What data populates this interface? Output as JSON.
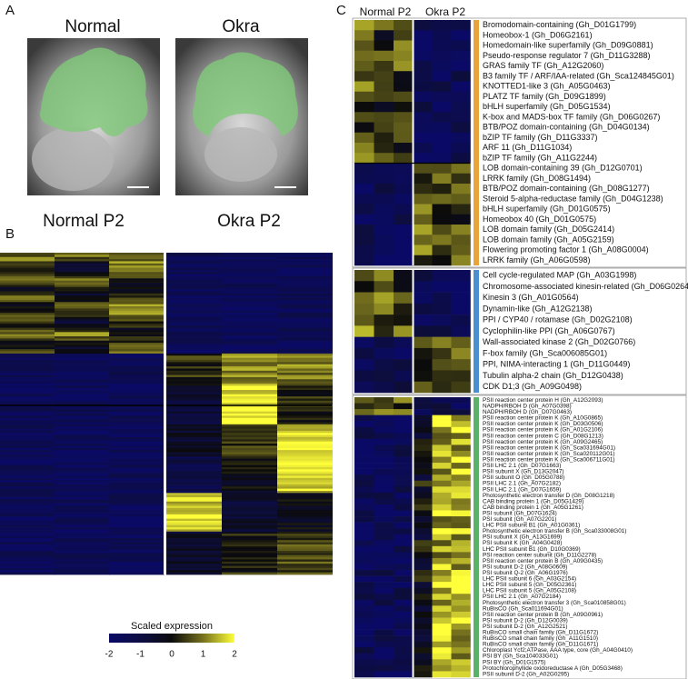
{
  "panels": {
    "A": {
      "label": "A",
      "images": [
        {
          "title": "Normal"
        },
        {
          "title": "Okra"
        }
      ]
    },
    "B": {
      "label": "B",
      "columns": [
        "Normal P2",
        "Okra P2"
      ],
      "colorbar": {
        "title": "Scaled expression",
        "ticks": [
          -2,
          -1,
          0,
          1,
          2
        ]
      }
    },
    "C": {
      "label": "C",
      "columns": [
        "Normal P2",
        "Okra P2"
      ],
      "groups": [
        {
          "color": "#e8a33a",
          "genes": [
            "Bromodomain-containing (Gh_D01G1799)",
            "Homeobox-1 (Gh_D06G2161)",
            "Homedomain-like superfamily (Gh_D09G0881)",
            "Pseudo-response regulator 7 (Gh_D11G3288)",
            "GRAS family TF (Gh_A12G2060)",
            "B3 family TF / ARF/IAA-related (Gh_Sca124845G01)",
            "KNOTTED1-like 3 (Gh_A05G0463)",
            "PLATZ TF family (Gh_D09G1899)",
            "bHLH superfamily (Gh_D05G1534)",
            "K-box and MADS-box TF family (Gh_D06G0267)",
            "BTB/POZ domain-containing (Gh_D04G0134)",
            "bZIP TF family (Gh_D11G3337)",
            "ARF 11 (Gh_D11G1034)",
            "bZIP TF family (Gh_A11G2244)",
            "LOB domain-containing 39 (Gh_D12G0701)",
            "LRRK family (Gh_D08G1494)",
            "BTB/POZ domain-containing (Gh_D08G1277)",
            "Steroid 5-alpha-reductase family (Gh_D04G1238)",
            "bHLH superfamily (Gh_D01G0575)",
            "Homeobox 40 (Gh_D01G0575)",
            "LOB domain family (Gh_D05G2414)",
            "LOB domain family (Gh_A05G2159)",
            "Flowering promoting factor 1 (Gh_A08G0004)",
            "LRRK family (Gh_A06G0598)"
          ]
        },
        {
          "color": "#4a90d0",
          "genes": [
            "Cell cycle-regulated MAP (Gh_A03G1998)",
            "Chromosome-associated kinesin-related (Gh_D06G0264)",
            "Kinesin 3 (Gh_A01G0564)",
            "Dynamin-like (Gh_A12G2138)",
            "PPI / CYP40 / rotamase (Gh_D02G2108)",
            "Cyclophilin-like PPI (Gh_A06G0767)",
            "Wall-associated kinase 2 (Gh_D02G0766)",
            "F-box family (Gh_Sca006085G01)",
            "PPI, NIMA-interacting 1 (Gh_D11G0449)",
            "Tubulin alpha-2 chain (Gh_D12G0438)",
            "CDK D1;3 (Gh_A09G0498)"
          ]
        },
        {
          "color": "#5bb06a",
          "genes": [
            "PSII reaction center protein H (Gh_A12G2093)",
            "NADPH/RBOH D (Gh_A07G0398)",
            "NADPH/RBOH D (Gh_D07G0463)",
            "PSII reaction center protein K (Gh_A10G0865)",
            "PSII reaction center protein K (Gh_D03G0506)",
            "PSII reaction center protein K (Gh_A01G2106)",
            "PSII reaction center protein C (Gh_D08G1213)",
            "PSII reaction center protein K (Gh_A09G2465)",
            "PSII reaction center protein K (Gh_Sca031694G01)",
            "PSII reaction center protein K (Gh_Sca020112G01)",
            "PSII reaction center protein K (Gh_Sca006711G01)",
            "PSII LHC 2.1 (Gh_D07G1663)",
            "PSII subunit X (Gh_D13G2047)",
            "PSII subunit O (Gh_D05G0788)",
            "PSII LHC 2.1 (Gh_A07G2182)",
            "PSII LHC 2.1 (Gh_D07G1659)",
            "Photosynthetic electron transfer D (Gh_D08G1218)",
            "CAB binding protein 1 (Gh_D05G1429)",
            "CAB binding protein 1 (Gh_A05G1261)",
            "PSI subunit (Gh_D07G1624)",
            "PSI subunit (Gh_A07G2201)",
            "LHC PSII subunit B1 (Gh_A01G0361)",
            "Photosynthetic electron transfer B (Gh_Sca033008G01)",
            "PSI subunit X (Gh_A13G1699)",
            "PSI subunit K (Gh_A04G0428)",
            "LHC PSII subunit B1 (Gh_D10G0369)",
            "PSI reaction center subunit (Gh_D11G2278)",
            "PSII reaction center protein B (Gh_A09G0435)",
            "PSI subunit D-2 (Gh_A08G0609)",
            "PSI subunit Q-2 (Gh_A06G1976)",
            "LHC PSII subunit 6 (Gh_A03G2154)",
            "LHC PSII subunit 5 (Gh_D05G2361)",
            "LHC PSII subunit 5 (Gh_A05G2108)",
            "PSII LHC 2.1 (Gh_A07G2184)",
            "Photosynthetic electron transfer 3 (Gh_Sca010858G01)",
            "RuBisCO (Gh_Sca011694G01)",
            "PSII reaction center protein B (Gh_A09G0961)",
            "PSI subunit D-2 (Gh_D12G0039)",
            "PSI subunit D-2 (Gh_A12G2521)",
            "RuBisCO small chain family (Gh_D11G1672)",
            "RuBisCO small chain family (Gh_A11G1510)",
            "RuBisCO small chain family (Gh_D11G1671)",
            "Chloroplast Ycf2;ATPase, AAA type, core (Gh_A04G0410)",
            "PSI BY (Gh_Sca104033G01)",
            "PSI BY (Gh_D01G1575)",
            "Protochlorophyllide oxidoreductase A (Gh_D05G3468)",
            "PSII subunit D-2 (Gh_A02G0295)"
          ]
        }
      ]
    }
  }
}
